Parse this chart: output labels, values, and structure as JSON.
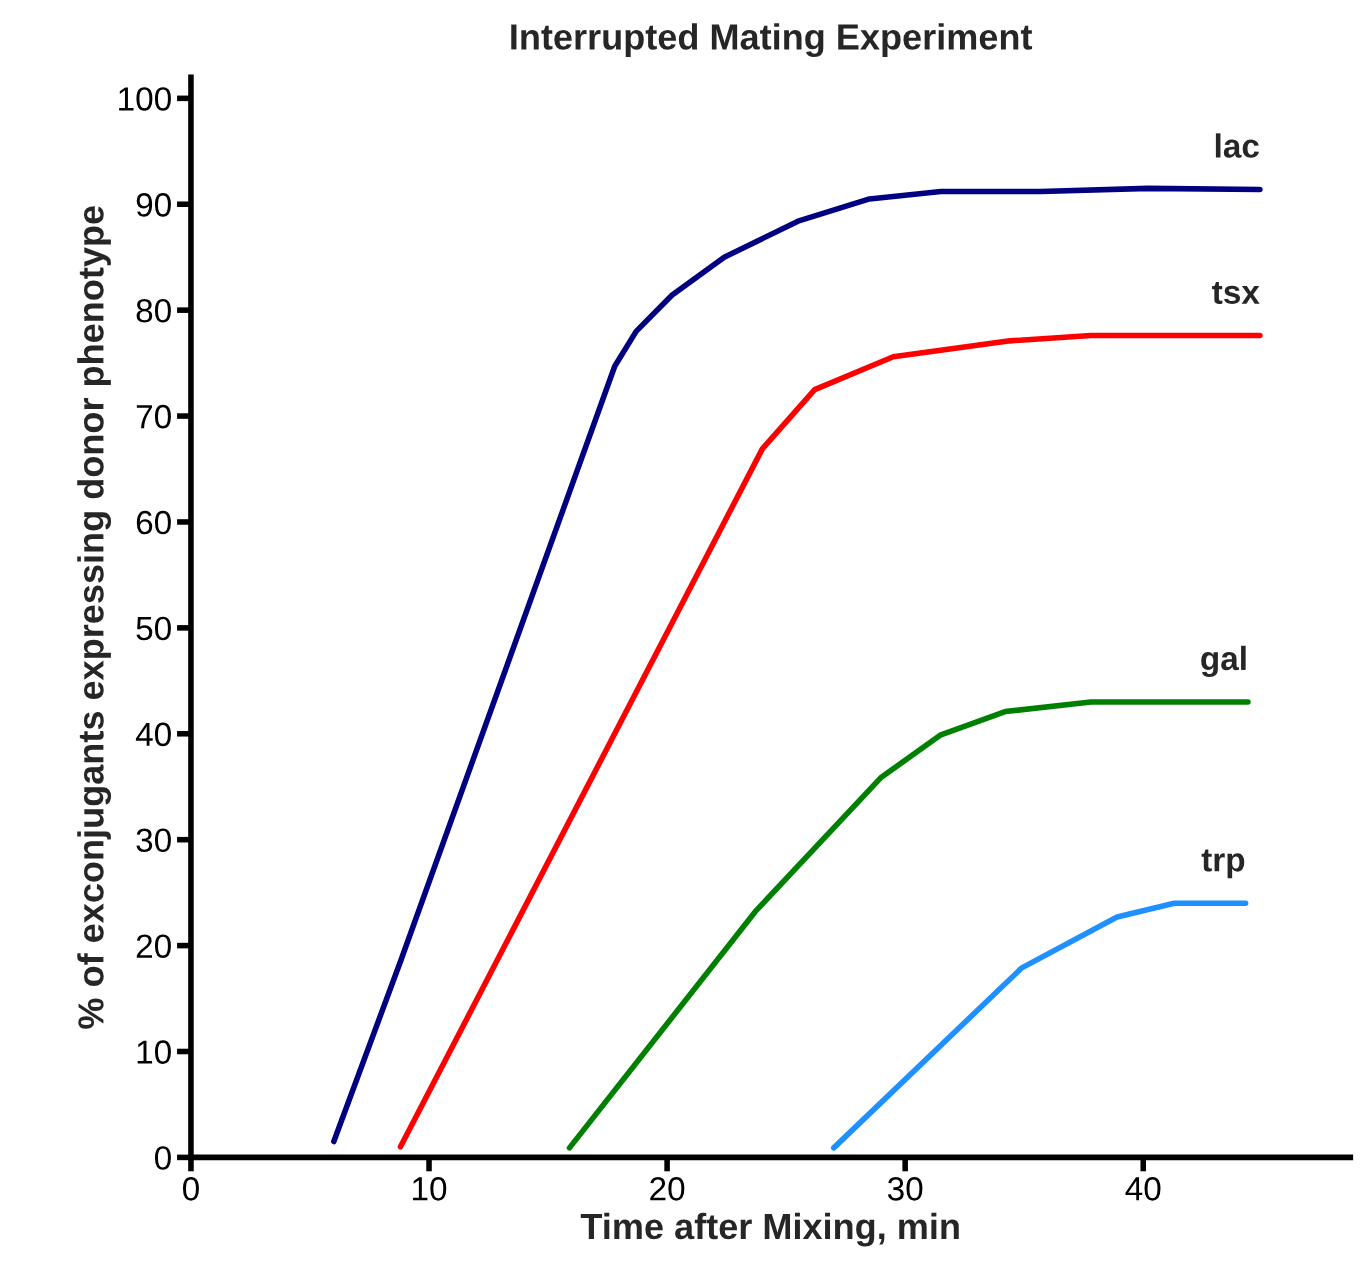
{
  "chart_data": {
    "type": "line",
    "title": "Interrupted Mating Experiment",
    "xlabel": "Time after Mixing, min",
    "ylabel": "% of exconjugants expressing donor phenotype",
    "xlim": [
      0,
      48.7
    ],
    "ylim": [
      0,
      102
    ],
    "xticks": [
      0,
      10,
      20,
      30,
      40
    ],
    "yticks": [
      0,
      10,
      20,
      30,
      40,
      50,
      60,
      70,
      80,
      90,
      100
    ],
    "grid": false,
    "marker": "none",
    "line_style": "solid",
    "series": [
      {
        "name": "lac",
        "color": "#000080",
        "x": [
          6,
          8.8,
          17.8,
          18.7,
          20.2,
          22.4,
          25.5,
          28.5,
          31.5,
          35.7,
          40.2,
          44.9
        ],
        "values": [
          1.5,
          18.5,
          74.7,
          78,
          81.4,
          85,
          88.4,
          90.5,
          91.2,
          91.2,
          91.5,
          91.4
        ]
      },
      {
        "name": "tsx",
        "color": "#ff0000",
        "x": [
          8.8,
          24,
          26.2,
          29.5,
          34.4,
          37.8,
          44.9
        ],
        "values": [
          1,
          66.9,
          72.5,
          75.6,
          77.1,
          77.6,
          77.6
        ]
      },
      {
        "name": "gal",
        "color": "#008000",
        "x": [
          15.9,
          23.7,
          29,
          31.5,
          34.2,
          37.8,
          44.4
        ],
        "values": [
          0.9,
          23.2,
          35.9,
          39.9,
          42.1,
          43,
          43
        ]
      },
      {
        "name": "trp",
        "color": "#1e90ff",
        "x": [
          27,
          34.9,
          38.9,
          41.3,
          44.3
        ],
        "values": [
          0.9,
          17.9,
          22.7,
          24,
          24
        ]
      }
    ]
  }
}
